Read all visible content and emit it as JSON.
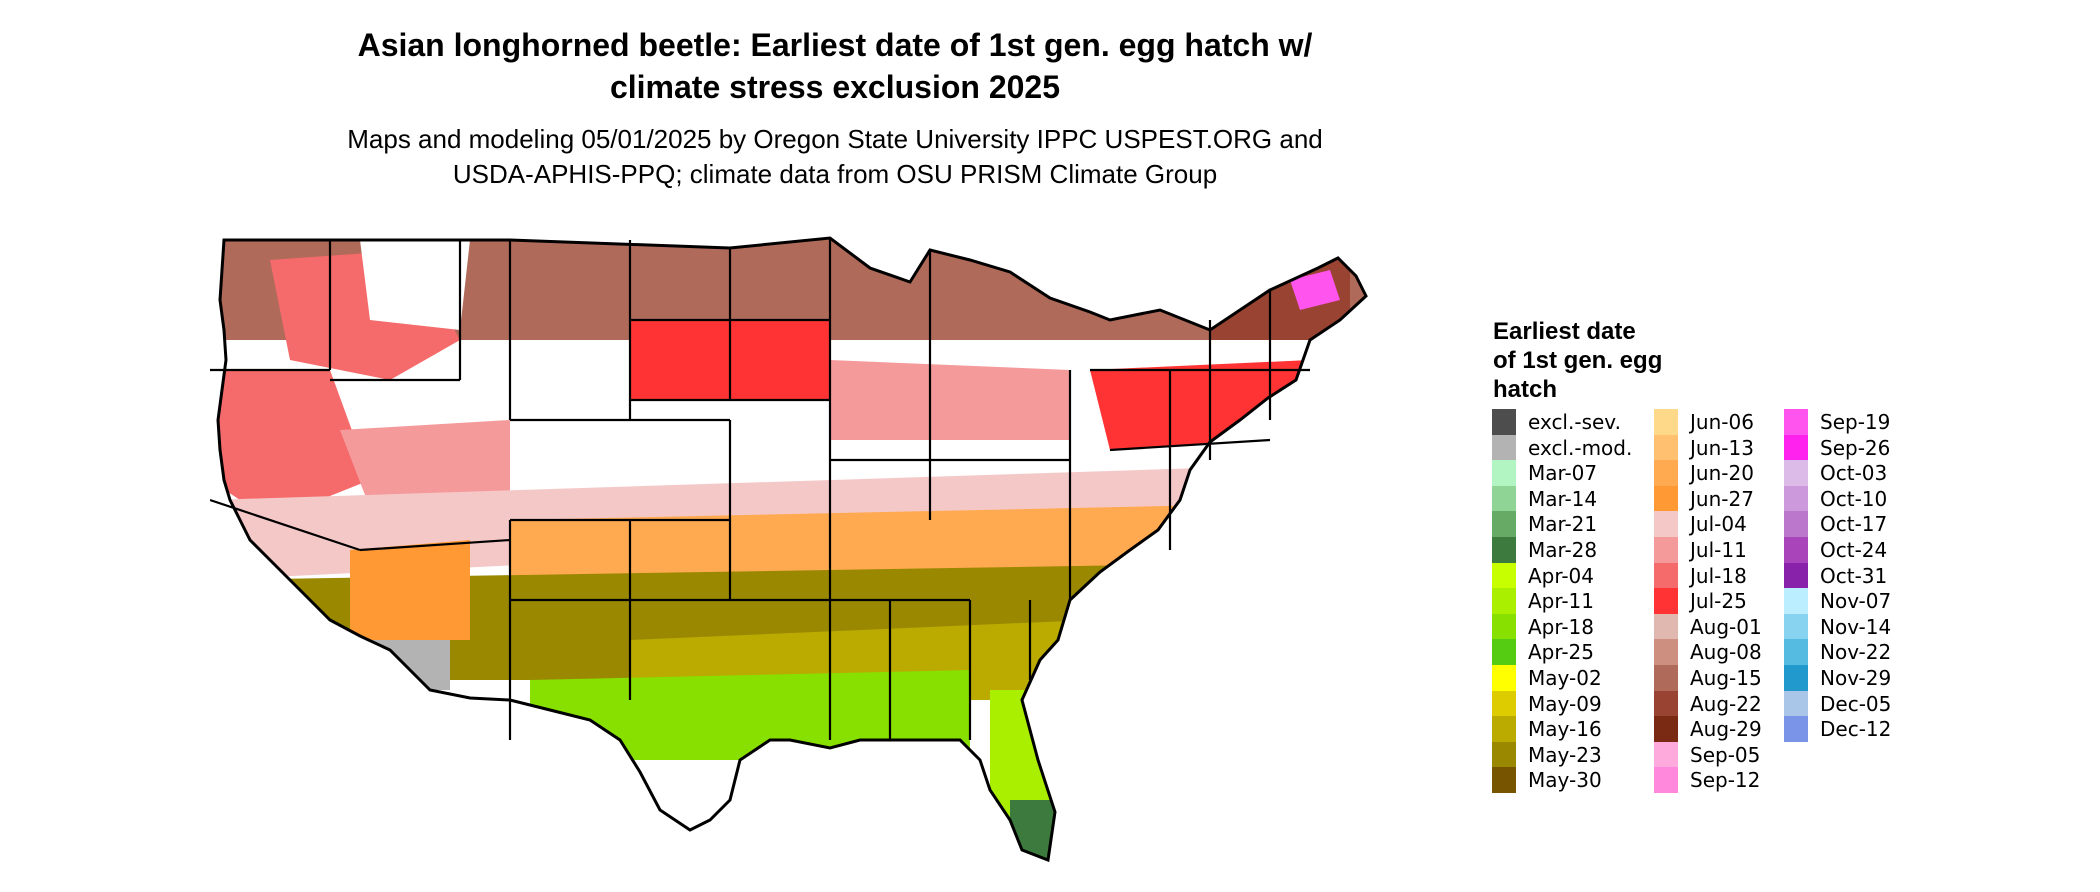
{
  "map": {
    "title_lines": [
      "Asian longhorned beetle: Earliest date of 1st gen. egg hatch w/",
      "climate stress exclusion 2025"
    ],
    "subtitle_lines": [
      "Maps and modeling 05/01/2025 by Oregon State University IPPC USPEST.ORG and",
      "USDA-APHIS-PPQ; climate data from OSU PRISM Climate Group"
    ],
    "region": "Contiguous United States"
  },
  "legend": {
    "title_lines": [
      "Earliest date",
      "of 1st gen. egg",
      "hatch"
    ],
    "columns": [
      [
        {
          "label": "excl.-sev.",
          "color": "#4d4d4d"
        },
        {
          "label": "excl.-mod.",
          "color": "#b3b3b3"
        },
        {
          "label": "Mar-07",
          "color": "#b3f5c2"
        },
        {
          "label": "Mar-14",
          "color": "#8fd494"
        },
        {
          "label": "Mar-21",
          "color": "#66aa66"
        },
        {
          "label": "Mar-28",
          "color": "#3d7a3d"
        },
        {
          "label": "Apr-04",
          "color": "#c8ff00"
        },
        {
          "label": "Apr-11",
          "color": "#aaee00"
        },
        {
          "label": "Apr-18",
          "color": "#88e000"
        },
        {
          "label": "Apr-25",
          "color": "#55cc11"
        },
        {
          "label": "May-02",
          "color": "#ffff00"
        },
        {
          "label": "May-09",
          "color": "#ddcc00"
        },
        {
          "label": "May-16",
          "color": "#bbaa00"
        },
        {
          "label": "May-23",
          "color": "#998800"
        },
        {
          "label": "May-30",
          "color": "#775500"
        }
      ],
      [
        {
          "label": "Jun-06",
          "color": "#ffd98a"
        },
        {
          "label": "Jun-13",
          "color": "#ffc070"
        },
        {
          "label": "Jun-20",
          "color": "#ffaa50"
        },
        {
          "label": "Jun-27",
          "color": "#ff9933"
        },
        {
          "label": "Jul-04",
          "color": "#f5c8c8"
        },
        {
          "label": "Jul-11",
          "color": "#f59a9a"
        },
        {
          "label": "Jul-18",
          "color": "#f56a6a"
        },
        {
          "label": "Jul-25",
          "color": "#ff3333"
        },
        {
          "label": "Aug-01",
          "color": "#e0b8b0"
        },
        {
          "label": "Aug-08",
          "color": "#cc8f80"
        },
        {
          "label": "Aug-15",
          "color": "#b06a5a"
        },
        {
          "label": "Aug-22",
          "color": "#994433"
        },
        {
          "label": "Aug-29",
          "color": "#7a2a12"
        },
        {
          "label": "Sep-05",
          "color": "#ffaadd"
        },
        {
          "label": "Sep-12",
          "color": "#ff88dd"
        }
      ],
      [
        {
          "label": "Sep-19",
          "color": "#ff55ee"
        },
        {
          "label": "Sep-26",
          "color": "#ff22ee"
        },
        {
          "label": "Oct-03",
          "color": "#ddbbe8"
        },
        {
          "label": "Oct-10",
          "color": "#cc99dd"
        },
        {
          "label": "Oct-17",
          "color": "#bb77cc"
        },
        {
          "label": "Oct-24",
          "color": "#aa44bb"
        },
        {
          "label": "Oct-31",
          "color": "#8822aa"
        },
        {
          "label": "Nov-07",
          "color": "#bbeeff"
        },
        {
          "label": "Nov-14",
          "color": "#88d4f0"
        },
        {
          "label": "Nov-22",
          "color": "#55bbe0"
        },
        {
          "label": "Nov-29",
          "color": "#2299cc"
        },
        {
          "label": "Dec-05",
          "color": "#a9c5e8"
        },
        {
          "label": "Dec-12",
          "color": "#7a95e8"
        }
      ]
    ]
  }
}
